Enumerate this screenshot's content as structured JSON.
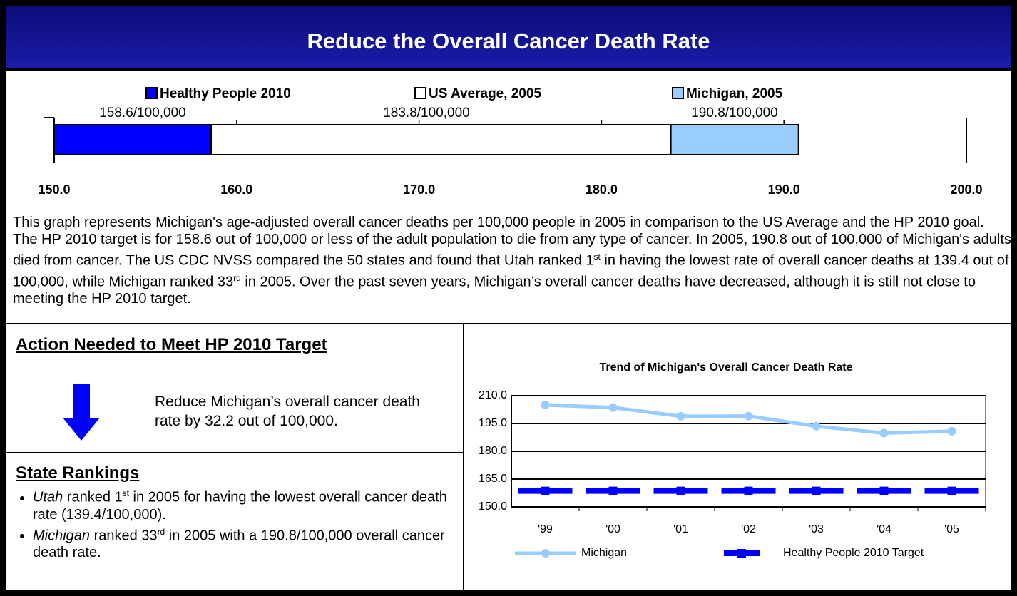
{
  "header": {
    "title": "Reduce the Overall Cancer Death Rate"
  },
  "chart_data": [
    {
      "type": "hbar",
      "series": [
        {
          "name": "Healthy People 2010",
          "color": "#0000ff",
          "values": [
            158.6
          ],
          "value_labels": [
            "158.6/100,000"
          ]
        },
        {
          "name": "US Average, 2005",
          "color": "#ffffff",
          "values": [
            183.8
          ],
          "value_labels": [
            "183.8/100,000"
          ]
        },
        {
          "name": "Michigan, 2005",
          "color": "#99ccff",
          "values": [
            190.8
          ],
          "value_labels": [
            "190.8/100,000"
          ]
        }
      ],
      "xlim": [
        150,
        200
      ],
      "xticks": [
        {
          "value": 150,
          "label": "150.0"
        },
        {
          "value": 160,
          "label": "160.0"
        },
        {
          "value": 170,
          "label": "170.0"
        },
        {
          "value": 180,
          "label": "180.0"
        },
        {
          "value": 190,
          "label": "190.0"
        },
        {
          "value": 200,
          "label": "200.0"
        }
      ]
    },
    {
      "type": "line",
      "title": "Trend of Michigan's Overall Cancer Death Rate",
      "categories": [
        "'99",
        "'00",
        "'01",
        "'02",
        "'03",
        "'04",
        "'05"
      ],
      "series": [
        {
          "name": "Michigan",
          "color": "#99ccff",
          "values": [
            205.0,
            203.6,
            198.9,
            199.0,
            193.5,
            189.8,
            190.8
          ]
        },
        {
          "name": "Healthy People 2010 Target",
          "color": "#0000ff",
          "values": [
            158.6,
            158.6,
            158.6,
            158.6,
            158.6,
            158.6,
            158.6
          ]
        }
      ],
      "ylim": [
        150,
        210
      ],
      "yticks": [
        {
          "value": 150,
          "label": "150.0"
        },
        {
          "value": 165,
          "label": "165.0"
        },
        {
          "value": 180,
          "label": "180.0"
        },
        {
          "value": 195,
          "label": "195.0"
        },
        {
          "value": 210,
          "label": "210.0"
        }
      ],
      "grid": true
    }
  ],
  "description": [
    "This graph represents Michigan's age-adjusted overall cancer deaths per 100,000 people in 2005 in comparison to the US Average and the HP 2010 goal.  The HP 2010 target is for 158.6 out of 100,000 or less of the adult population to die from any type of cancer.  In 2005, 190.8 out of 100,000 of Michigan's adults died from cancer. The US CDC NVSS compared the 50 states and found that Utah ranked 1",
    "st",
    " in having the lowest rate of overall cancer deaths at 139.4 out of 100,000, while Michigan ranked 33",
    "rd",
    " in 2005. Over the past seven years, Michigan’s overall cancer deaths have decreased, although it is still not close to meeting the HP 2010 target."
  ],
  "action": {
    "heading": "Action Needed to Meet HP 2010 Target",
    "text": "Reduce Michigan’s overall cancer death rate by 32.2 out of 100,000."
  },
  "rankings": {
    "heading": "State Rankings",
    "items": [
      [
        "Utah",
        " ranked 1",
        "st",
        " in 2005 for having the lowest overall cancer death rate (139.4/100,000)."
      ],
      [
        "Michigan",
        " ranked 33",
        "rd",
        " in 2005 with a 190.8/100,000 overall cancer death rate."
      ]
    ]
  }
}
